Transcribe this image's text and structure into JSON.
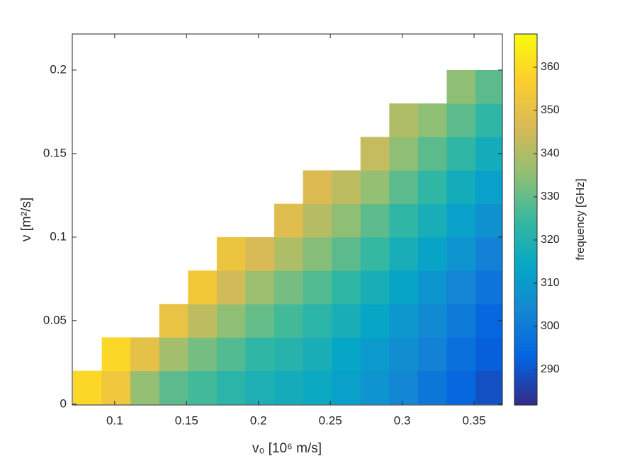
{
  "chart_data": {
    "type": "heatmap",
    "xlabel": "v₀ [10⁶ m/s]",
    "ylabel": "ν [m²/s]",
    "colorbar_label": "frequency [GHz]",
    "x": [
      0.071,
      0.091,
      0.111,
      0.131,
      0.151,
      0.171,
      0.191,
      0.211,
      0.231,
      0.251,
      0.271,
      0.291,
      0.311,
      0.331,
      0.351,
      0.371
    ],
    "y": [
      0,
      0.02,
      0.04,
      0.06,
      0.08,
      0.1,
      0.12,
      0.14,
      0.16,
      0.18,
      0.2,
      0.22
    ],
    "z": [
      [
        359,
        null,
        null,
        null,
        null,
        null,
        null,
        null,
        null,
        null,
        null
      ],
      [
        353,
        359,
        null,
        null,
        null,
        null,
        null,
        null,
        null,
        null,
        null
      ],
      [
        336,
        350,
        null,
        null,
        null,
        null,
        null,
        null,
        null,
        null,
        null
      ],
      [
        329,
        338,
        351,
        null,
        null,
        null,
        null,
        null,
        null,
        null,
        null
      ],
      [
        326,
        332,
        342,
        354,
        null,
        null,
        null,
        null,
        null,
        null,
        null
      ],
      [
        322,
        328,
        335,
        345,
        352,
        null,
        null,
        null,
        null,
        null,
        null
      ],
      [
        319,
        323,
        330,
        337,
        346,
        null,
        null,
        null,
        null,
        null,
        null
      ],
      [
        317,
        321,
        326,
        332,
        340,
        348,
        null,
        null,
        null,
        null,
        null
      ],
      [
        315,
        318,
        322,
        328,
        334,
        341,
        347,
        null,
        null,
        null,
        null
      ],
      [
        312,
        314,
        318,
        323,
        329,
        335,
        342,
        null,
        null,
        null,
        null
      ],
      [
        308,
        310,
        314,
        318,
        324,
        329,
        336,
        343,
        null,
        null,
        null
      ],
      [
        304,
        306,
        309,
        313,
        318,
        323,
        329,
        335,
        340,
        null,
        null
      ],
      [
        299,
        302,
        305,
        308,
        313,
        318,
        323,
        329,
        335,
        null,
        null
      ],
      [
        294,
        297,
        300,
        303,
        308,
        312,
        317,
        323,
        329,
        335,
        null
      ],
      [
        289,
        292,
        294,
        298,
        302,
        307,
        312,
        317,
        323,
        329,
        null
      ]
    ],
    "xlim": [
      0.0705,
      0.3697
    ],
    "ylim": [
      -0.0005,
      0.2216
    ],
    "xticks": [
      0.1,
      0.15,
      0.2,
      0.25,
      0.3,
      0.35
    ],
    "yticks": [
      0,
      0.05,
      0.1,
      0.15,
      0.2
    ],
    "clim": [
      281.8,
      367.7
    ],
    "cticks": [
      290,
      300,
      310,
      320,
      330,
      340,
      350,
      360
    ],
    "colormap": [
      "#352a87",
      "#0363e1",
      "#1485d4",
      "#06a7c6",
      "#38b99e",
      "#92bf73",
      "#d9ba56",
      "#fcce2e",
      "#f9fb0e"
    ]
  }
}
